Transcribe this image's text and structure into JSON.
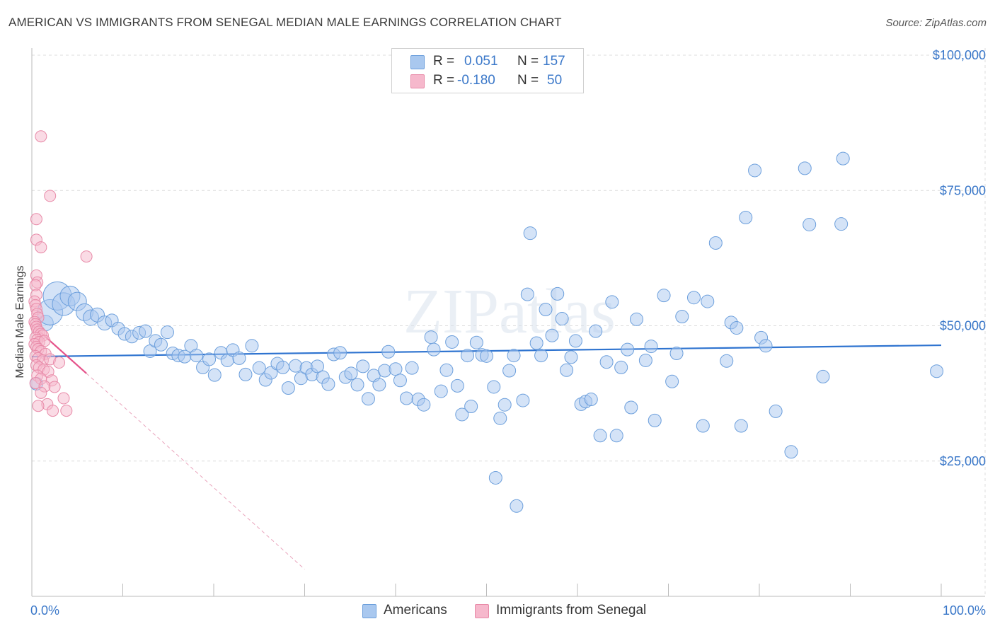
{
  "title": "AMERICAN VS IMMIGRANTS FROM SENEGAL MEDIAN MALE EARNINGS CORRELATION CHART",
  "source": "Source: ZipAtlas.com",
  "watermark": "ZIPatlas",
  "legend": {
    "rows": [
      {
        "r_label": "R =",
        "r_value": "0.051",
        "n_label": "N =",
        "n_value": "157",
        "color": "#a9c8ef",
        "border": "#6c9fdc"
      },
      {
        "r_label": "R =",
        "r_value": "-0.180",
        "n_label": "N =",
        "n_value": "50",
        "color": "#f6b8cc",
        "border": "#e88aa8"
      }
    ]
  },
  "bottom_legend": [
    {
      "label": "Americans",
      "color": "#a9c8ef",
      "border": "#6c9fdc"
    },
    {
      "label": "Immigrants from Senegal",
      "color": "#f6b8cc",
      "border": "#e88aa8"
    }
  ],
  "chart_data": {
    "type": "scatter",
    "title": "AMERICAN VS IMMIGRANTS FROM SENEGAL MEDIAN MALE EARNINGS CORRELATION CHART",
    "xlabel": "",
    "ylabel": "Median Male Earnings",
    "xlim": [
      0,
      100
    ],
    "ylim": [
      0,
      105000
    ],
    "x_tick_labels": [
      "0.0%",
      "100.0%"
    ],
    "y_ticks": [
      {
        "value": 25000,
        "label": "$25,000"
      },
      {
        "value": 50000,
        "label": "$50,000"
      },
      {
        "value": 75000,
        "label": "$75,000"
      },
      {
        "value": 100000,
        "label": "$100,000"
      }
    ],
    "grid": true,
    "series": [
      {
        "name": "Americans",
        "color": "#6c9fdc",
        "fill": "#a9c8ef",
        "trend": {
          "x1": 0,
          "y1": 44300,
          "x2": 100,
          "y2": 46400,
          "color": "#2f74d0"
        },
        "points": [
          [
            0.5,
            39300,
            9
          ],
          [
            1.5,
            50500,
            11
          ],
          [
            2.0,
            52500,
            18
          ],
          [
            2.8,
            55500,
            20
          ],
          [
            3.5,
            54000,
            16
          ],
          [
            4.2,
            55500,
            14
          ],
          [
            5.0,
            54500,
            13
          ],
          [
            5.8,
            52500,
            12
          ],
          [
            6.5,
            51500,
            11
          ],
          [
            7.2,
            52000,
            10
          ],
          [
            8.0,
            50500,
            10
          ],
          [
            8.8,
            51000,
            9
          ],
          [
            9.5,
            49500,
            9
          ],
          [
            10.2,
            48500,
            9
          ],
          [
            11.0,
            48000,
            9
          ],
          [
            11.8,
            48700,
            9
          ],
          [
            12.5,
            49000,
            9
          ],
          [
            13.0,
            45300,
            9
          ],
          [
            13.6,
            47200,
            9
          ],
          [
            14.2,
            46500,
            9
          ],
          [
            14.9,
            48800,
            9
          ],
          [
            15.5,
            44900,
            9
          ],
          [
            16.1,
            44500,
            9
          ],
          [
            16.8,
            44300,
            9
          ],
          [
            17.5,
            46300,
            9
          ],
          [
            18.1,
            44500,
            9
          ],
          [
            18.8,
            42300,
            9
          ],
          [
            19.5,
            43800,
            9
          ],
          [
            20.1,
            40900,
            9
          ],
          [
            20.8,
            45000,
            9
          ],
          [
            21.5,
            43600,
            9
          ],
          [
            22.1,
            45500,
            9
          ],
          [
            22.8,
            44000,
            9
          ],
          [
            23.5,
            41000,
            9
          ],
          [
            24.2,
            46300,
            9
          ],
          [
            25.0,
            42200,
            9
          ],
          [
            25.7,
            40000,
            9
          ],
          [
            26.3,
            41300,
            9
          ],
          [
            27.0,
            43000,
            9
          ],
          [
            27.6,
            42300,
            9
          ],
          [
            28.2,
            38500,
            9
          ],
          [
            29.0,
            42600,
            9
          ],
          [
            29.6,
            40300,
            9
          ],
          [
            30.2,
            42200,
            9
          ],
          [
            30.8,
            41000,
            9
          ],
          [
            31.4,
            42500,
            9
          ],
          [
            32.0,
            40500,
            9
          ],
          [
            32.6,
            39200,
            9
          ],
          [
            33.2,
            44700,
            9
          ],
          [
            33.9,
            45000,
            9
          ],
          [
            34.5,
            40500,
            9
          ],
          [
            35.1,
            41200,
            9
          ],
          [
            35.8,
            39100,
            9
          ],
          [
            36.4,
            42500,
            9
          ],
          [
            37.0,
            36500,
            9
          ],
          [
            37.6,
            40800,
            9
          ],
          [
            38.2,
            39100,
            9
          ],
          [
            38.8,
            41700,
            9
          ],
          [
            39.2,
            45200,
            9
          ],
          [
            40.0,
            42000,
            9
          ],
          [
            40.5,
            39900,
            9
          ],
          [
            41.2,
            36600,
            9
          ],
          [
            41.8,
            42200,
            9
          ],
          [
            42.5,
            36400,
            9
          ],
          [
            43.1,
            35400,
            9
          ],
          [
            43.9,
            47900,
            9
          ],
          [
            44.2,
            45600,
            9
          ],
          [
            45.0,
            37900,
            9
          ],
          [
            45.6,
            41800,
            9
          ],
          [
            46.2,
            47000,
            9
          ],
          [
            46.8,
            38900,
            9
          ],
          [
            47.3,
            33600,
            9
          ],
          [
            47.9,
            44500,
            9
          ],
          [
            48.3,
            35100,
            9
          ],
          [
            48.9,
            46900,
            9
          ],
          [
            49.5,
            44600,
            9
          ],
          [
            50.0,
            44400,
            9
          ],
          [
            50.8,
            38700,
            9
          ],
          [
            51.5,
            32900,
            9
          ],
          [
            51.0,
            21900,
            9
          ],
          [
            52.0,
            35400,
            9
          ],
          [
            52.5,
            41700,
            9
          ],
          [
            53.0,
            44500,
            9
          ],
          [
            53.3,
            16700,
            9
          ],
          [
            54.0,
            36200,
            9
          ],
          [
            54.5,
            55800,
            9
          ],
          [
            54.8,
            67100,
            9
          ],
          [
            55.5,
            46800,
            9
          ],
          [
            56.0,
            44500,
            9
          ],
          [
            56.5,
            53000,
            9
          ],
          [
            57.2,
            48200,
            9
          ],
          [
            57.8,
            55900,
            9
          ],
          [
            58.3,
            51300,
            9
          ],
          [
            58.8,
            41800,
            9
          ],
          [
            59.3,
            44200,
            9
          ],
          [
            59.8,
            47200,
            9
          ],
          [
            60.4,
            35500,
            9
          ],
          [
            60.9,
            36000,
            9
          ],
          [
            61.5,
            36400,
            9
          ],
          [
            62.0,
            49000,
            9
          ],
          [
            62.5,
            29700,
            9
          ],
          [
            63.2,
            43300,
            9
          ],
          [
            63.8,
            54400,
            9
          ],
          [
            64.3,
            29700,
            9
          ],
          [
            64.8,
            42300,
            9
          ],
          [
            65.5,
            45600,
            9
          ],
          [
            65.9,
            34900,
            9
          ],
          [
            66.5,
            51200,
            9
          ],
          [
            67.5,
            43600,
            9
          ],
          [
            68.1,
            46200,
            9
          ],
          [
            68.5,
            32500,
            9
          ],
          [
            69.5,
            55600,
            9
          ],
          [
            70.4,
            39700,
            9
          ],
          [
            70.9,
            44900,
            9
          ],
          [
            71.5,
            51700,
            9
          ],
          [
            72.8,
            55200,
            9
          ],
          [
            73.8,
            31500,
            9
          ],
          [
            74.3,
            54500,
            9
          ],
          [
            75.2,
            65300,
            9
          ],
          [
            76.4,
            43500,
            9
          ],
          [
            76.9,
            50600,
            9
          ],
          [
            77.5,
            49600,
            9
          ],
          [
            78.0,
            31500,
            9
          ],
          [
            78.5,
            70000,
            9
          ],
          [
            79.5,
            78700,
            9
          ],
          [
            80.2,
            47800,
            9
          ],
          [
            80.7,
            46300,
            9
          ],
          [
            81.8,
            34200,
            9
          ],
          [
            83.5,
            26700,
            9
          ],
          [
            85.0,
            79100,
            9
          ],
          [
            85.5,
            68700,
            9
          ],
          [
            87.0,
            40600,
            9
          ],
          [
            89.0,
            68800,
            9
          ],
          [
            89.2,
            80900,
            9
          ],
          [
            99.5,
            41600,
            9
          ]
        ]
      },
      {
        "name": "Immigrants from Senegal",
        "color": "#e88aa8",
        "fill": "#f6b8cc",
        "trend": {
          "x1": 0,
          "y1": 50200,
          "x2": 6.0,
          "y2": 41200,
          "color": "#e5528a"
        },
        "trend_dashed": {
          "x1": 6.0,
          "y1": 41200,
          "x2": 30.0,
          "y2": 5000,
          "color": "#e9a4bc"
        },
        "points": [
          [
            1.0,
            85000,
            8
          ],
          [
            2.0,
            74000,
            8
          ],
          [
            0.5,
            69700,
            8
          ],
          [
            0.5,
            65900,
            8
          ],
          [
            1.0,
            64500,
            8
          ],
          [
            6.0,
            62800,
            8
          ],
          [
            0.5,
            59300,
            8
          ],
          [
            0.6,
            58000,
            8
          ],
          [
            0.4,
            57500,
            8
          ],
          [
            0.5,
            55700,
            8
          ],
          [
            0.3,
            54500,
            8
          ],
          [
            0.4,
            53800,
            8
          ],
          [
            0.5,
            53100,
            8
          ],
          [
            0.6,
            52200,
            8
          ],
          [
            0.7,
            51500,
            8
          ],
          [
            0.3,
            50700,
            8
          ],
          [
            0.4,
            50300,
            8
          ],
          [
            0.5,
            49800,
            8
          ],
          [
            0.6,
            49300,
            8
          ],
          [
            0.8,
            48900,
            8
          ],
          [
            1.0,
            48500,
            8
          ],
          [
            1.2,
            48200,
            8
          ],
          [
            0.4,
            47800,
            8
          ],
          [
            0.6,
            47400,
            8
          ],
          [
            0.8,
            47000,
            8
          ],
          [
            1.4,
            47200,
            8
          ],
          [
            0.3,
            46600,
            8
          ],
          [
            0.5,
            46100,
            8
          ],
          [
            0.7,
            45700,
            8
          ],
          [
            1.0,
            45300,
            8
          ],
          [
            1.5,
            44800,
            8
          ],
          [
            0.4,
            44400,
            8
          ],
          [
            0.7,
            44000,
            8
          ],
          [
            1.2,
            43600,
            8
          ],
          [
            2.0,
            43800,
            8
          ],
          [
            3.0,
            43200,
            8
          ],
          [
            0.5,
            42700,
            8
          ],
          [
            0.8,
            42300,
            8
          ],
          [
            1.3,
            41900,
            8
          ],
          [
            1.8,
            41500,
            8
          ],
          [
            0.6,
            40800,
            8
          ],
          [
            1.0,
            40200,
            8
          ],
          [
            2.2,
            39900,
            8
          ],
          [
            0.4,
            39400,
            8
          ],
          [
            1.4,
            38800,
            8
          ],
          [
            2.5,
            38700,
            8
          ],
          [
            1.0,
            37600,
            8
          ],
          [
            1.7,
            35500,
            8
          ],
          [
            0.7,
            35200,
            8
          ],
          [
            3.5,
            36600,
            8
          ],
          [
            2.3,
            34300,
            8
          ],
          [
            3.8,
            34300,
            8
          ]
        ]
      }
    ]
  }
}
